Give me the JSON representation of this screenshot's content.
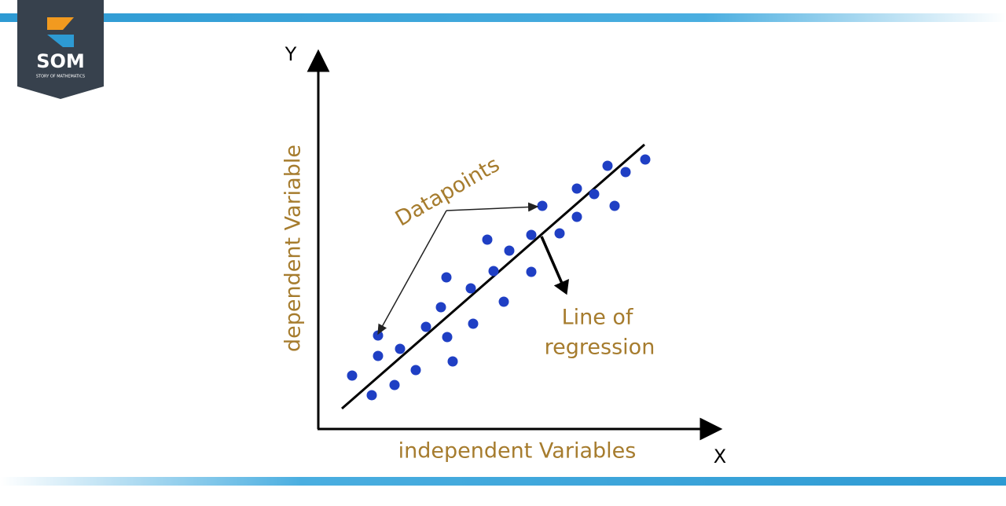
{
  "logo": {
    "title": "SOM",
    "subtitle": "STORY OF MATHEMATICS"
  },
  "diagram": {
    "y_axis_letter": "Y",
    "x_axis_letter": "X",
    "y_axis_label": "dependent Variable",
    "x_axis_label": "independent Variables",
    "datapoints_label": "Datapoints",
    "regression_label_line1": "Line of",
    "regression_label_line2": "regression"
  }
}
